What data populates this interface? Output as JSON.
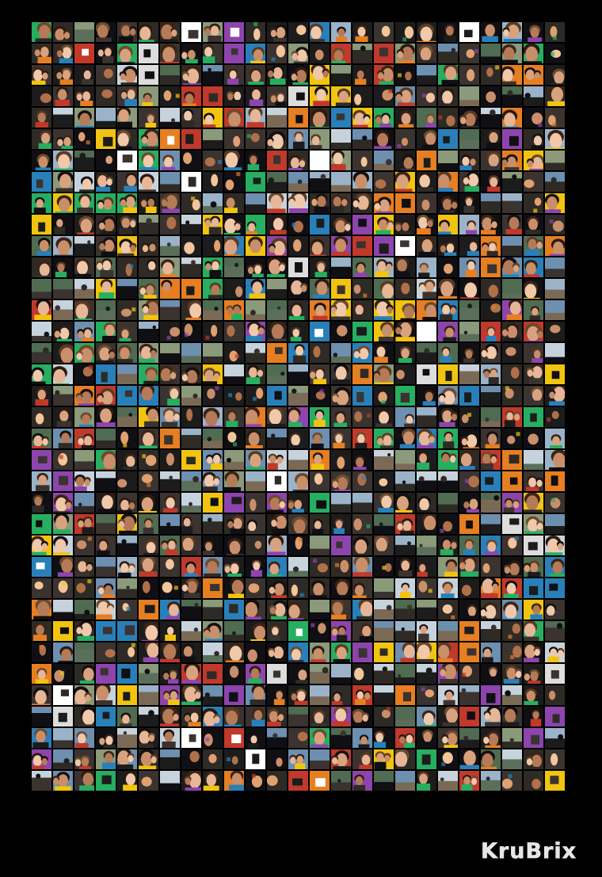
{
  "mosaic": {
    "columns": 25,
    "rows": 36,
    "tile_shape": "square-photo-thumbnail",
    "content": "profile-photo-thumbnails",
    "background_color": "#000000",
    "palette": {
      "skin": [
        "#d9a27f",
        "#c98f6a",
        "#e6b696",
        "#b57a57",
        "#f0c8aa"
      ],
      "hair": [
        "#2a1a12",
        "#3b2416",
        "#5a3a22",
        "#141010",
        "#6b4a2e"
      ],
      "scenery": [
        "#6d8fb0",
        "#9bb3c9",
        "#4f6b52",
        "#8a9a7a",
        "#c7d3dc"
      ],
      "dark": [
        "#1c1c1c",
        "#2e2a26",
        "#3a3330",
        "#0f0f14"
      ],
      "accent": [
        "#c0392b",
        "#e67e22",
        "#f1c40f",
        "#8e44ad",
        "#2980b9",
        "#27ae60"
      ]
    }
  },
  "logo": {
    "text": "KruBrix",
    "color": "#e6e6e6"
  }
}
